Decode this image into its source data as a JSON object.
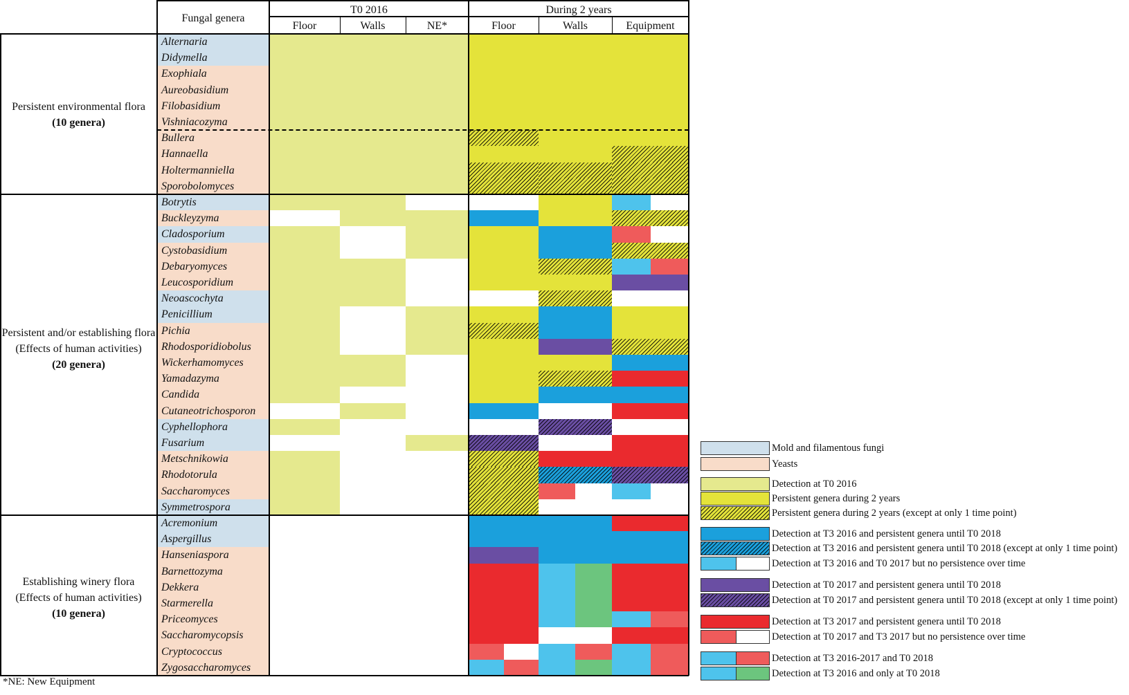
{
  "chart_data": {
    "type": "heatmap",
    "header": {
      "genera_col": "Fungal genera",
      "t0_group": "T0 2016",
      "during_group": "During 2 years",
      "t0_cols": [
        "Floor",
        "Walls",
        "NE*"
      ],
      "during_cols": [
        "Floor",
        "Walls",
        "Equipment"
      ]
    },
    "groups": [
      {
        "name": "Persistent environmental flora",
        "count": "(10 genera)",
        "rows": [
          0,
          9
        ]
      },
      {
        "name": "Persistent and/or establishing flora",
        "name2": "(Effects of human activities)",
        "count": "(20 genera)",
        "rows": [
          10,
          29
        ]
      },
      {
        "name": "Establishing winery flora",
        "name2": "(Effects of human activities)",
        "count": "(10 genera)",
        "rows": [
          30,
          39
        ]
      }
    ],
    "colors": {
      "mold": "#cfe0ec",
      "yeast": "#f8dcc9",
      "t0": "#e5e98e",
      "persist": "#e4e33a",
      "blue_dark": "#1ba0dc",
      "light_blue": "#4ec3ec",
      "salmon": "#ef5b5b",
      "purple": "#6a4ea3",
      "red": "#ea2a2e",
      "green": "#6cc57e",
      "white": "#ffffff"
    },
    "rows": [
      {
        "genus": "Alternaria",
        "type": "mold",
        "t0": [
          1,
          1,
          1
        ],
        "floor": [
          "persist"
        ],
        "walls": [
          "persist"
        ],
        "equip": [
          "persist"
        ]
      },
      {
        "genus": "Didymella",
        "type": "mold",
        "t0": [
          1,
          1,
          1
        ],
        "floor": [
          "persist"
        ],
        "walls": [
          "persist"
        ],
        "equip": [
          "persist"
        ]
      },
      {
        "genus": "Exophiala",
        "type": "yeast",
        "t0": [
          1,
          1,
          1
        ],
        "floor": [
          "persist"
        ],
        "walls": [
          "persist"
        ],
        "equip": [
          "persist"
        ]
      },
      {
        "genus": "Aureobasidium",
        "type": "yeast",
        "t0": [
          1,
          1,
          1
        ],
        "floor": [
          "persist"
        ],
        "walls": [
          "persist"
        ],
        "equip": [
          "persist"
        ]
      },
      {
        "genus": "Filobasidium",
        "type": "yeast",
        "t0": [
          1,
          1,
          1
        ],
        "floor": [
          "persist"
        ],
        "walls": [
          "persist"
        ],
        "equip": [
          "persist"
        ]
      },
      {
        "genus": "Vishniacozyma",
        "type": "yeast",
        "t0": [
          1,
          1,
          1
        ],
        "floor": [
          "persist"
        ],
        "walls": [
          "persist"
        ],
        "equip": [
          "persist"
        ]
      },
      {
        "genus": "Bullera",
        "type": "yeast",
        "t0": [
          1,
          1,
          1
        ],
        "floor": [
          "persist*"
        ],
        "walls": [
          "persist"
        ],
        "equip": [
          "persist"
        ]
      },
      {
        "genus": "Hannaella",
        "type": "yeast",
        "t0": [
          1,
          1,
          1
        ],
        "floor": [
          "persist"
        ],
        "walls": [
          "persist"
        ],
        "equip": [
          "persist*"
        ]
      },
      {
        "genus": "Holtermanniella",
        "type": "yeast",
        "t0": [
          1,
          1,
          1
        ],
        "floor": [
          "persist*"
        ],
        "walls": [
          "persist*"
        ],
        "equip": [
          "persist*"
        ]
      },
      {
        "genus": "Sporobolomyces",
        "type": "yeast",
        "t0": [
          1,
          1,
          1
        ],
        "floor": [
          "persist*"
        ],
        "walls": [
          "persist*"
        ],
        "equip": [
          "persist*"
        ]
      },
      {
        "genus": "Botrytis",
        "type": "mold",
        "t0": [
          1,
          1,
          0
        ],
        "floor": [
          "white"
        ],
        "walls": [
          "persist"
        ],
        "equip": [
          "light_blue",
          "white"
        ]
      },
      {
        "genus": "Buckleyzyma",
        "type": "yeast",
        "t0": [
          0,
          1,
          1
        ],
        "floor": [
          "blue_dark"
        ],
        "walls": [
          "persist"
        ],
        "equip": [
          "persist*"
        ]
      },
      {
        "genus": "Cladosporium",
        "type": "mold",
        "t0": [
          1,
          0,
          1
        ],
        "floor": [
          "persist"
        ],
        "walls": [
          "blue_dark"
        ],
        "equip": [
          "salmon",
          "white"
        ]
      },
      {
        "genus": "Cystobasidium",
        "type": "yeast",
        "t0": [
          1,
          0,
          1
        ],
        "floor": [
          "persist"
        ],
        "walls": [
          "blue_dark"
        ],
        "equip": [
          "persist*"
        ]
      },
      {
        "genus": "Debaryomyces",
        "type": "yeast",
        "t0": [
          1,
          1,
          0
        ],
        "floor": [
          "persist"
        ],
        "walls": [
          "persist*"
        ],
        "equip": [
          "light_blue",
          "salmon"
        ]
      },
      {
        "genus": "Leucosporidium",
        "type": "yeast",
        "t0": [
          1,
          1,
          0
        ],
        "floor": [
          "persist"
        ],
        "walls": [
          "persist"
        ],
        "equip": [
          "purple"
        ]
      },
      {
        "genus": "Neoascochyta",
        "type": "mold",
        "t0": [
          1,
          1,
          0
        ],
        "floor": [
          "white"
        ],
        "walls": [
          "persist*"
        ],
        "equip": [
          "white"
        ]
      },
      {
        "genus": "Penicillium",
        "type": "mold",
        "t0": [
          1,
          0,
          1
        ],
        "floor": [
          "persist"
        ],
        "walls": [
          "blue_dark"
        ],
        "equip": [
          "persist"
        ]
      },
      {
        "genus": "Pichia",
        "type": "yeast",
        "t0": [
          1,
          0,
          1
        ],
        "floor": [
          "persist*"
        ],
        "walls": [
          "blue_dark"
        ],
        "equip": [
          "persist"
        ]
      },
      {
        "genus": "Rhodosporidiobolus",
        "type": "yeast",
        "t0": [
          1,
          0,
          1
        ],
        "floor": [
          "persist"
        ],
        "walls": [
          "purple"
        ],
        "equip": [
          "persist*"
        ]
      },
      {
        "genus": "Wickerhamomyces",
        "type": "yeast",
        "t0": [
          1,
          1,
          0
        ],
        "floor": [
          "persist"
        ],
        "walls": [
          "persist"
        ],
        "equip": [
          "blue_dark"
        ]
      },
      {
        "genus": "Yamadazyma",
        "type": "yeast",
        "t0": [
          1,
          1,
          0
        ],
        "floor": [
          "persist"
        ],
        "walls": [
          "persist*"
        ],
        "equip": [
          "red"
        ]
      },
      {
        "genus": "Candida",
        "type": "yeast",
        "t0": [
          1,
          0,
          0
        ],
        "floor": [
          "persist"
        ],
        "walls": [
          "blue_dark"
        ],
        "equip": [
          "blue_dark"
        ]
      },
      {
        "genus": "Cutaneotrichosporon",
        "type": "yeast",
        "t0": [
          0,
          1,
          0
        ],
        "floor": [
          "blue_dark"
        ],
        "walls": [
          "white"
        ],
        "equip": [
          "red"
        ]
      },
      {
        "genus": "Cyphellophora",
        "type": "mold",
        "t0": [
          1,
          0,
          0
        ],
        "floor": [
          "white"
        ],
        "walls": [
          "purple*"
        ],
        "equip": [
          "white"
        ]
      },
      {
        "genus": "Fusarium",
        "type": "mold",
        "t0": [
          0,
          0,
          1
        ],
        "floor": [
          "purple*"
        ],
        "walls": [
          "white"
        ],
        "equip": [
          "red"
        ]
      },
      {
        "genus": "Metschnikowia",
        "type": "yeast",
        "t0": [
          1,
          0,
          0
        ],
        "floor": [
          "persist*"
        ],
        "walls": [
          "red"
        ],
        "equip": [
          "red"
        ]
      },
      {
        "genus": "Rhodotorula",
        "type": "yeast",
        "t0": [
          1,
          0,
          0
        ],
        "floor": [
          "persist*"
        ],
        "walls": [
          "blue_dark*"
        ],
        "equip": [
          "purple*"
        ]
      },
      {
        "genus": "Saccharomyces",
        "type": "yeast",
        "t0": [
          1,
          0,
          0
        ],
        "floor": [
          "persist*"
        ],
        "walls": [
          "salmon",
          "white"
        ],
        "equip": [
          "light_blue",
          "white"
        ]
      },
      {
        "genus": "Symmetrospora",
        "type": "mold",
        "t0": [
          1,
          0,
          0
        ],
        "floor": [
          "persist*"
        ],
        "walls": [
          "white"
        ],
        "equip": [
          "white"
        ]
      },
      {
        "genus": "Acremonium",
        "type": "mold",
        "t0": [
          0,
          0,
          0
        ],
        "floor": [
          "blue_dark"
        ],
        "walls": [
          "blue_dark"
        ],
        "equip": [
          "red"
        ]
      },
      {
        "genus": "Aspergillus",
        "type": "mold",
        "t0": [
          0,
          0,
          0
        ],
        "floor": [
          "blue_dark"
        ],
        "walls": [
          "blue_dark"
        ],
        "equip": [
          "blue_dark"
        ]
      },
      {
        "genus": "Hanseniaspora",
        "type": "yeast",
        "t0": [
          0,
          0,
          0
        ],
        "floor": [
          "purple"
        ],
        "walls": [
          "blue_dark"
        ],
        "equip": [
          "blue_dark"
        ]
      },
      {
        "genus": "Barnettozyma",
        "type": "yeast",
        "t0": [
          0,
          0,
          0
        ],
        "floor": [
          "red"
        ],
        "walls": [
          "light_blue",
          "green"
        ],
        "equip": [
          "red"
        ]
      },
      {
        "genus": "Dekkera",
        "type": "yeast",
        "t0": [
          0,
          0,
          0
        ],
        "floor": [
          "red"
        ],
        "walls": [
          "light_blue",
          "green"
        ],
        "equip": [
          "red"
        ]
      },
      {
        "genus": "Starmerella",
        "type": "yeast",
        "t0": [
          0,
          0,
          0
        ],
        "floor": [
          "red"
        ],
        "walls": [
          "light_blue",
          "green"
        ],
        "equip": [
          "red"
        ]
      },
      {
        "genus": "Priceomyces",
        "type": "yeast",
        "t0": [
          0,
          0,
          0
        ],
        "floor": [
          "red"
        ],
        "walls": [
          "light_blue",
          "green"
        ],
        "equip": [
          "light_blue",
          "salmon"
        ]
      },
      {
        "genus": "Saccharomycopsis",
        "type": "yeast",
        "t0": [
          0,
          0,
          0
        ],
        "floor": [
          "red"
        ],
        "walls": [
          "white"
        ],
        "equip": [
          "red"
        ]
      },
      {
        "genus": "Cryptococcus",
        "type": "yeast",
        "t0": [
          0,
          0,
          0
        ],
        "floor": [
          "salmon",
          "white"
        ],
        "walls": [
          "light_blue",
          "salmon"
        ],
        "equip": [
          "light_blue",
          "salmon"
        ]
      },
      {
        "genus": "Zygosaccharomyces",
        "type": "yeast",
        "t0": [
          0,
          0,
          0
        ],
        "floor": [
          "light_blue",
          "salmon"
        ],
        "walls": [
          "light_blue",
          "green"
        ],
        "equip": [
          "light_blue",
          "salmon"
        ]
      }
    ],
    "legend": [
      {
        "group": 1,
        "label": "Mold and filamentous fungi",
        "fill": "mold"
      },
      {
        "group": 1,
        "label": "Yeasts",
        "fill": "yeast"
      },
      {
        "group": 2,
        "label": "Detection at T0 2016",
        "fill": "t0"
      },
      {
        "group": 2,
        "label": "Persistent genera during 2 years",
        "fill": "persist"
      },
      {
        "group": 2,
        "label": "Persistent genera during 2 years (except at only 1 time point)",
        "fill": "persist*"
      },
      {
        "group": 3,
        "label": "Detection at T3 2016  and persistent genera until T0 2018",
        "fill": "blue_dark"
      },
      {
        "group": 3,
        "label": "Detection at T3 2016 and persistent genera until T0 2018 (except at only 1 time point)",
        "fill": "blue_dark*"
      },
      {
        "group": 3,
        "label": "Detection at T3 2016 and T0 2017 but no persistence over time",
        "fill": "light_blue|white"
      },
      {
        "group": 4,
        "label": "Detection at T0 2017 and persistent genera until T0 2018",
        "fill": "purple"
      },
      {
        "group": 4,
        "label": "Detection at T0 2017 and persistent genera until T0 2018 (except at only 1 time point)",
        "fill": "purple*"
      },
      {
        "group": 5,
        "label": "Detection at T3 2017 and persistent genera until T0 2018",
        "fill": "red"
      },
      {
        "group": 5,
        "label": "Detection at T0 2017 and T3 2017 but no persistence over time",
        "fill": "salmon|white"
      },
      {
        "group": 6,
        "label": "Detection at T3 2016-2017 and T0 2018",
        "fill": "light_blue|salmon"
      },
      {
        "group": 6,
        "label": "Detection at T3 2016  and only at T0 2018",
        "fill": "light_blue|green"
      }
    ],
    "footnote": "*NE: New Equipment"
  }
}
